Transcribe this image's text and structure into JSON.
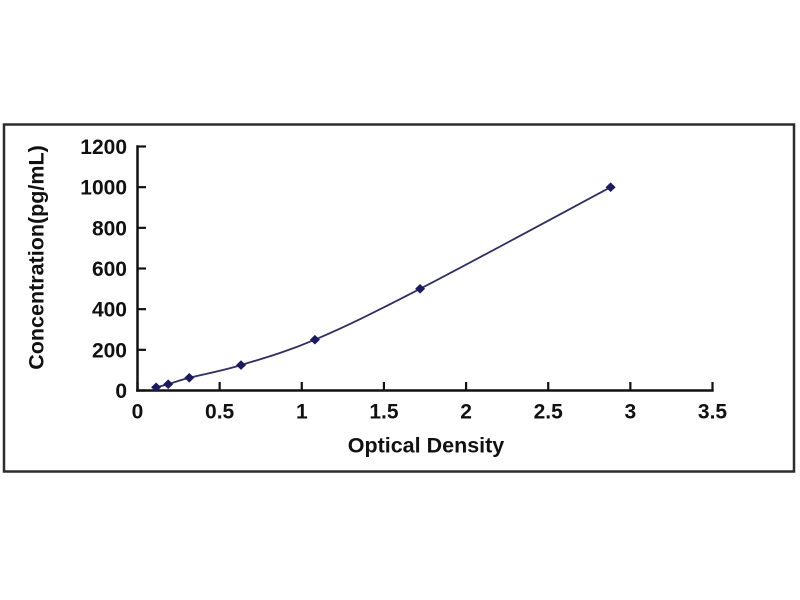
{
  "figure": {
    "background_color": "#ffffff",
    "frame_border_color": "#2b2b2b",
    "axis_color": "#111111",
    "text_color": "#111111"
  },
  "chart_data": {
    "type": "line",
    "subtype": "smoothed-line-with-diamond-markers",
    "title": "",
    "xlabel": "Optical Density",
    "ylabel": "Concentration(pg/mL)",
    "xlim": [
      0,
      3.5
    ],
    "ylim": [
      0,
      1200
    ],
    "x_tick_values": [
      0,
      0.5,
      1,
      1.5,
      2,
      2.5,
      3,
      3.5
    ],
    "x_tick_labels": [
      "0",
      "0.5",
      "1",
      "1.5",
      "2",
      "2.5",
      "3",
      "3.5"
    ],
    "y_tick_values": [
      0,
      200,
      400,
      600,
      800,
      1000,
      1200
    ],
    "y_tick_labels": [
      "0",
      "200",
      "400",
      "600",
      "800",
      "1000",
      "1200"
    ],
    "grid": false,
    "legend": null,
    "series": [
      {
        "name": "standard-curve",
        "marker": "diamond",
        "marker_color": "#1b1b5e",
        "line_color": "#2f2f60",
        "x": [
          0.113,
          0.187,
          0.315,
          0.63,
          1.08,
          1.72,
          2.88
        ],
        "y": [
          15.6,
          31.2,
          62.5,
          125,
          250,
          500,
          1000
        ]
      }
    ]
  }
}
